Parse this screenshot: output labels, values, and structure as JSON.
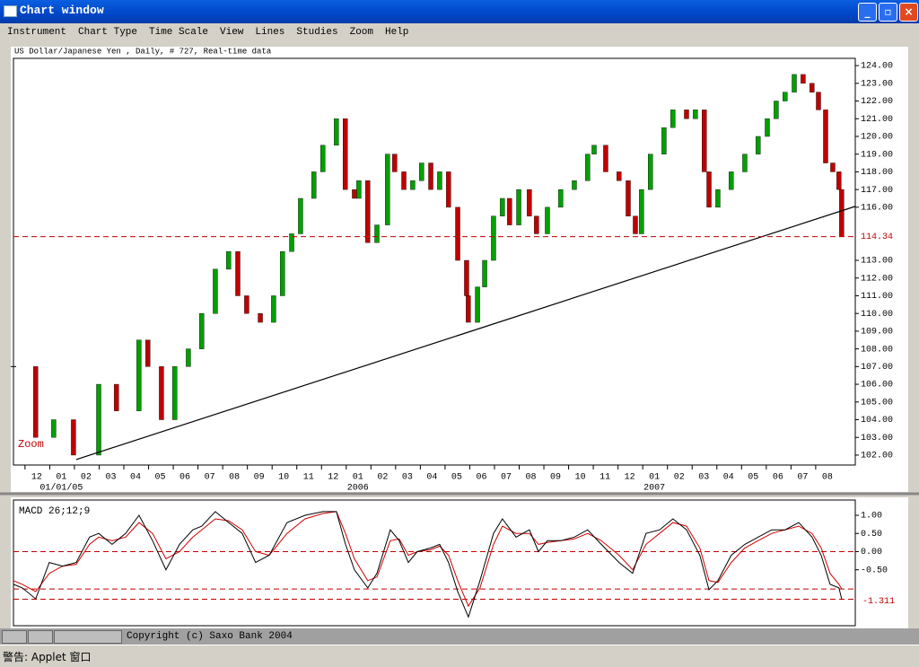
{
  "window": {
    "title": "Chart window"
  },
  "menu": [
    "Instrument",
    "Chart Type",
    "Time Scale",
    "View",
    "Lines",
    "Studies",
    "Zoom",
    "Help"
  ],
  "chart_data": [
    {
      "type": "candlestick",
      "title": "US Dollar/Japanese Yen , Daily, # 727, Real-time data",
      "annotation": "Zoom",
      "up_color": "#00a000",
      "down_color": "#c00000",
      "last_color": "#c00000",
      "x": [
        -0.94,
        -0.04,
        0.69,
        1.49,
        2.51,
        3.23,
        4.14,
        4.5,
        5.05,
        5.59,
        6.14,
        6.68,
        7.23,
        7.77,
        8.14,
        8.5,
        9.05,
        9.59,
        9.95,
        10.32,
        10.68,
        11.22,
        11.58,
        12.13,
        12.49,
        12.86,
        13.04,
        13.4,
        13.77,
        14.2,
        14.49,
        14.86,
        15.22,
        15.58,
        15.95,
        16.31,
        16.67,
        17.04,
        17.4,
        17.47,
        17.84,
        18.13,
        18.49,
        18.85,
        19.14,
        19.51,
        19.94,
        20.23,
        20.67,
        21.21,
        21.76,
        22.3,
        22.56,
        23.03,
        23.57,
        23.94,
        24.23,
        24.48,
        24.84,
        25.39,
        25.75,
        26.3,
        26.66,
        27.02,
        27.21,
        27.57,
        28.11,
        28.66,
        29.2,
        29.57,
        29.93,
        30.29,
        30.66,
        31.02,
        31.38,
        31.64,
        31.93,
        32.22,
        32.47,
        32.58
      ],
      "close": [
        107,
        103,
        104,
        102,
        106,
        104.5,
        108.5,
        107,
        104,
        107,
        108,
        110,
        112.5,
        113.5,
        111,
        110,
        109.5,
        111,
        113.5,
        114.5,
        116.5,
        118,
        119.5,
        121,
        117,
        116.5,
        117.5,
        114,
        115,
        119,
        118,
        117,
        117.5,
        118.5,
        117,
        118,
        116,
        113,
        111,
        109.5,
        111.5,
        113,
        115.5,
        116.5,
        115,
        117,
        115.5,
        114.5,
        116,
        117,
        117.5,
        119,
        119.5,
        118,
        117.5,
        115.5,
        114.5,
        117,
        119,
        120.5,
        121.5,
        121,
        121.5,
        118,
        116,
        117,
        118,
        119,
        120,
        121,
        122,
        122.5,
        123.5,
        123,
        122.5,
        121.5,
        118.5,
        118,
        117,
        114.34
      ],
      "trendline": {
        "x": [
          1.6,
          33.13
        ],
        "y": [
          101.75,
          116.05
        ]
      },
      "xlim": [
        -0.94,
        33.13
      ],
      "ylim": [
        101.44,
        124.41
      ],
      "yticks": [
        {
          "value": 102,
          "label": "102.00"
        },
        {
          "value": 103,
          "label": "103.00"
        },
        {
          "value": 104,
          "label": "104.00"
        },
        {
          "value": 105,
          "label": "105.00"
        },
        {
          "value": 106,
          "label": "106.00"
        },
        {
          "value": 107,
          "label": "107.00"
        },
        {
          "value": 108,
          "label": "108.00"
        },
        {
          "value": 109,
          "label": "109.00"
        },
        {
          "value": 110,
          "label": "110.00"
        },
        {
          "value": 111,
          "label": "111.00"
        },
        {
          "value": 112,
          "label": "112.00"
        },
        {
          "value": 113,
          "label": "113.00"
        },
        {
          "value": 116,
          "label": "116.00"
        },
        {
          "value": 117,
          "label": "117.00"
        },
        {
          "value": 118,
          "label": "118.00"
        },
        {
          "value": 119,
          "label": "119.00"
        },
        {
          "value": 120,
          "label": "120.00"
        },
        {
          "value": 121,
          "label": "121.00"
        },
        {
          "value": 122,
          "label": "122.00"
        },
        {
          "value": 123,
          "label": "123.00"
        },
        {
          "value": 124,
          "label": "124.00"
        }
      ],
      "xticks": [
        {
          "value": 0,
          "label": "12"
        },
        {
          "value": 1,
          "label": "01"
        },
        {
          "value": 2,
          "label": "02"
        },
        {
          "value": 3,
          "label": "03"
        },
        {
          "value": 4,
          "label": "04"
        },
        {
          "value": 5,
          "label": "05"
        },
        {
          "value": 6,
          "label": "06"
        },
        {
          "value": 7,
          "label": "07"
        },
        {
          "value": 8,
          "label": "08"
        },
        {
          "value": 9,
          "label": "09"
        },
        {
          "value": 10,
          "label": "10"
        },
        {
          "value": 11,
          "label": "11"
        },
        {
          "value": 12,
          "label": "12"
        },
        {
          "value": 13,
          "label": "01"
        },
        {
          "value": 14,
          "label": "02"
        },
        {
          "value": 15,
          "label": "03"
        },
        {
          "value": 16,
          "label": "04"
        },
        {
          "value": 17,
          "label": "05"
        },
        {
          "value": 18,
          "label": "06"
        },
        {
          "value": 19,
          "label": "07"
        },
        {
          "value": 20,
          "label": "08"
        },
        {
          "value": 21,
          "label": "09"
        },
        {
          "value": 22,
          "label": "10"
        },
        {
          "value": 23,
          "label": "11"
        },
        {
          "value": 24,
          "label": "12"
        },
        {
          "value": 25,
          "label": "01"
        },
        {
          "value": 26,
          "label": "02"
        },
        {
          "value": 27,
          "label": "03"
        },
        {
          "value": 28,
          "label": "04"
        },
        {
          "value": 29,
          "label": "05"
        },
        {
          "value": 30,
          "label": "06"
        },
        {
          "value": 31,
          "label": "07"
        },
        {
          "value": 32,
          "label": "08"
        }
      ],
      "year_labels": [
        {
          "value": 1,
          "label": "01/01/05"
        },
        {
          "value": 13,
          "label": "2006"
        },
        {
          "value": 25,
          "label": "2007"
        }
      ]
    },
    {
      "type": "line",
      "title": "MACD 26;12;9",
      "x": [
        -0.94,
        -0.58,
        -0.04,
        0.51,
        1.05,
        1.6,
        2.14,
        2.51,
        3.05,
        3.6,
        4.14,
        4.69,
        5.23,
        5.78,
        6.32,
        6.68,
        7.23,
        7.77,
        8.32,
        8.86,
        9.41,
        10.13,
        10.86,
        11.59,
        12.13,
        12.5,
        12.86,
        13.4,
        13.77,
        14.31,
        14.67,
        15.04,
        15.4,
        15.95,
        16.31,
        16.67,
        17.04,
        17.47,
        17.94,
        18.49,
        18.85,
        19.4,
        19.94,
        20.31,
        20.67,
        21.21,
        21.76,
        22.3,
        22.85,
        23.57,
        24.12,
        24.66,
        25.21,
        25.75,
        26.3,
        26.84,
        27.21,
        27.57,
        28.11,
        28.66,
        29.2,
        29.75,
        30.29,
        30.84,
        31.38,
        31.75,
        32.11,
        32.47,
        32.58
      ],
      "series": [
        {
          "color": "#000000",
          "values": [
            -0.9,
            -1.0,
            -1.3,
            -0.3,
            -0.4,
            -0.3,
            0.4,
            0.5,
            0.2,
            0.5,
            1.0,
            0.3,
            -0.5,
            0.2,
            0.6,
            0.7,
            1.1,
            0.8,
            0.5,
            -0.3,
            -0.1,
            0.8,
            1.0,
            1.1,
            1.1,
            0.2,
            -0.5,
            -1.0,
            -0.6,
            0.6,
            0.3,
            -0.3,
            0.0,
            0.1,
            0.2,
            -0.3,
            -1.1,
            -1.8,
            -0.8,
            0.5,
            0.9,
            0.4,
            0.6,
            0.0,
            0.3,
            0.3,
            0.4,
            0.6,
            0.2,
            -0.3,
            -0.6,
            0.5,
            0.6,
            0.9,
            0.6,
            -0.1,
            -1.05,
            -0.8,
            -0.1,
            0.2,
            0.4,
            0.6,
            0.6,
            0.8,
            0.4,
            -0.1,
            -0.9,
            -1.0,
            -1.311
          ]
        },
        {
          "color": "#d00000",
          "values": [
            -0.8,
            -0.9,
            -1.1,
            -0.6,
            -0.4,
            -0.35,
            0.2,
            0.4,
            0.3,
            0.4,
            0.8,
            0.5,
            -0.2,
            0.0,
            0.4,
            0.6,
            0.9,
            0.85,
            0.6,
            0.0,
            -0.1,
            0.5,
            0.9,
            1.05,
            1.1,
            0.5,
            -0.2,
            -0.8,
            -0.7,
            0.3,
            0.35,
            -0.1,
            0.0,
            0.05,
            0.15,
            -0.1,
            -0.8,
            -1.5,
            -1.0,
            0.2,
            0.7,
            0.5,
            0.5,
            0.2,
            0.25,
            0.3,
            0.35,
            0.5,
            0.3,
            -0.1,
            -0.5,
            0.2,
            0.5,
            0.8,
            0.7,
            0.1,
            -0.8,
            -0.85,
            -0.3,
            0.1,
            0.3,
            0.5,
            0.6,
            0.7,
            0.5,
            0.1,
            -0.6,
            -0.9,
            -1.03
          ]
        }
      ],
      "ref_lines": [
        0
      ],
      "last_color": "#c00000",
      "xlim": [
        -0.94,
        33.13
      ],
      "ylim": [
        -2.04,
        1.42
      ],
      "yticks": [
        {
          "value": 1,
          "label": "1.00"
        },
        {
          "value": 0.5,
          "label": "0.50"
        },
        {
          "value": 0,
          "label": "0.00"
        },
        {
          "value": -0.5,
          "label": "-0.50"
        }
      ]
    }
  ],
  "status": {
    "copyright": "Copyright (c) Saxo Bank 2004",
    "warning": "警告: Applet 窗口"
  }
}
